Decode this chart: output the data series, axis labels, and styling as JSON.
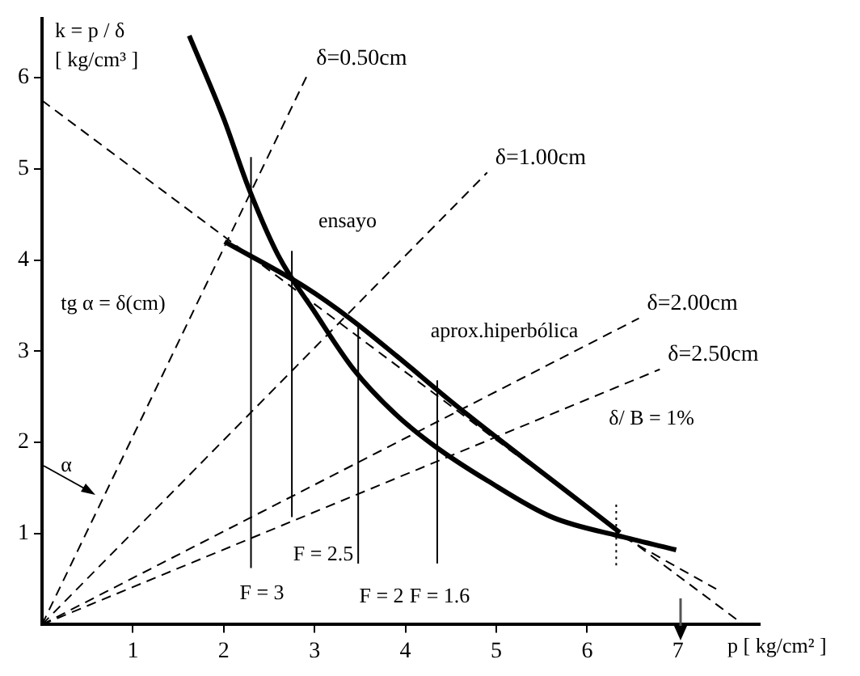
{
  "chart_data": {
    "type": "line",
    "ylabel": "k = p / δ\n[ kg/cm³ ]",
    "xlabel": "p [ kg/cm² ]",
    "xlim": [
      0,
      7.9
    ],
    "xticks": [
      1,
      2,
      3,
      4,
      5,
      6,
      7
    ],
    "ylim": [
      0,
      6.65
    ],
    "yticks": [
      1,
      2,
      3,
      4,
      5,
      6
    ],
    "grid": false,
    "legend": false,
    "marker": "none",
    "series": [
      {
        "type": "line",
        "color": "#000000",
        "line_style": "solid",
        "x": [
          1.62,
          2.0,
          2.27,
          2.6,
          3.0,
          3.43,
          3.9,
          4.32,
          4.9,
          5.61,
          6.4,
          6.98
        ],
        "values": [
          6.46,
          5.55,
          4.8,
          4.05,
          3.43,
          2.8,
          2.3,
          1.96,
          1.58,
          1.18,
          0.96,
          0.82
        ]
      },
      {
        "type": "line",
        "color": "#000000",
        "line_style": "solid",
        "x": [
          2.01,
          2.9,
          3.4,
          3.9,
          4.5,
          5.02,
          5.7,
          6.36
        ],
        "values": [
          4.2,
          3.7,
          3.35,
          2.95,
          2.45,
          2.04,
          1.52,
          1.01
        ]
      },
      {
        "type": "line",
        "name": "δ=0.50cm",
        "color": "#000000",
        "line_style": "dashed",
        "x": [
          0,
          2.93
        ],
        "values": [
          0,
          6.05
        ]
      },
      {
        "type": "line",
        "name": "δ=1.00cm",
        "color": "#000000",
        "line_style": "dashed",
        "x": [
          0,
          4.9
        ],
        "values": [
          0,
          4.96
        ]
      },
      {
        "type": "line",
        "name": "δ=2.00cm",
        "color": "#000000",
        "line_style": "dashed",
        "x": [
          0,
          6.57
        ],
        "values": [
          0,
          3.36
        ]
      },
      {
        "type": "line",
        "name": "δ=2.50cm",
        "color": "#000000",
        "line_style": "dashed",
        "x": [
          0,
          6.8
        ],
        "values": [
          0,
          2.8
        ]
      },
      {
        "type": "line",
        "color": "#000000",
        "line_style": "dashed",
        "x": [
          0,
          7.72
        ],
        "values": [
          5.75,
          0
        ]
      },
      {
        "type": "line",
        "color": "#000000",
        "line_style": "dashed",
        "x": [
          6.4,
          7.42
        ],
        "values": [
          0.96,
          0.39
        ]
      },
      {
        "type": "line",
        "color": "#000000",
        "line_style": "solid",
        "x": [
          2.3,
          2.3
        ],
        "values": [
          0.62,
          5.13
        ]
      },
      {
        "type": "line",
        "color": "#000000",
        "line_style": "solid",
        "x": [
          2.75,
          2.75
        ],
        "values": [
          1.18,
          4.1
        ]
      },
      {
        "type": "line",
        "color": "#000000",
        "line_style": "solid",
        "x": [
          3.48,
          3.48
        ],
        "values": [
          0.67,
          3.28
        ]
      },
      {
        "type": "line",
        "color": "#000000",
        "line_style": "solid",
        "x": [
          4.35,
          4.35
        ],
        "values": [
          0.67,
          2.68
        ]
      },
      {
        "type": "line",
        "color": "#000000",
        "line_style": "dotted",
        "x": [
          6.32,
          6.32
        ],
        "values": [
          0.65,
          1.36
        ]
      }
    ],
    "annotations": [
      "ensayo",
      "aprox.hiperbólica",
      "F = 3",
      "F = 2.5",
      "F = 2",
      "F = 1.6",
      "δ/ B = 1%",
      "tg α = δ(cm)",
      "α"
    ]
  }
}
